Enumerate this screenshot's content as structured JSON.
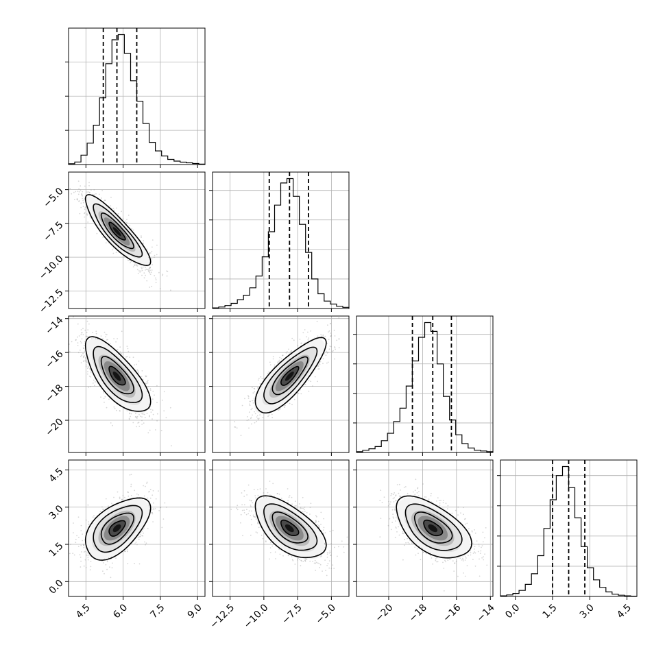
{
  "chart_data": {
    "type": "corner",
    "grid": true,
    "colors": {
      "marks": "#000000",
      "samples": "#8a8a8a",
      "grid": "#b0b0b0"
    },
    "parameters": [
      {
        "index": 0,
        "range": [
          3.8,
          9.3
        ],
        "ticks": [
          4.5,
          6.0,
          7.5,
          9.0
        ],
        "tick_labels": [
          "4.5",
          "6.0",
          "7.5",
          "9.0"
        ],
        "quantiles": [
          5.2,
          5.75,
          6.55
        ]
      },
      {
        "index": 1,
        "range": [
          -13.8,
          -3.7
        ],
        "ticks": [
          -12.5,
          -10.0,
          -7.5,
          -5.0
        ],
        "tick_labels": [
          "−12.5",
          "−10.0",
          "−7.5",
          "−5.0"
        ],
        "quantiles": [
          -9.6,
          -8.1,
          -6.7
        ]
      },
      {
        "index": 2,
        "range": [
          -21.9,
          -13.85
        ],
        "ticks": [
          -20,
          -18,
          -16,
          -14
        ],
        "tick_labels": [
          "−20",
          "−18",
          "−16",
          "−14"
        ],
        "quantiles": [
          -18.6,
          -17.4,
          -16.3
        ]
      },
      {
        "index": 3,
        "range": [
          -0.6,
          4.9
        ],
        "ticks": [
          0.0,
          1.5,
          3.0,
          4.5
        ],
        "tick_labels": [
          "0.0",
          "1.5",
          "3.0",
          "4.5"
        ],
        "quantiles": [
          1.5,
          2.15,
          2.8
        ]
      }
    ],
    "histograms": [
      {
        "param": 0,
        "bins": [
          3.8,
          9.3
        ],
        "counts": [
          0.5,
          1.5,
          5.5,
          12.5,
          23,
          39,
          59,
          73,
          76,
          65,
          49,
          37,
          24,
          13,
          8,
          5,
          3,
          2,
          1.4,
          1,
          0.6,
          0.3
        ]
      },
      {
        "param": 1,
        "bins": [
          -13.8,
          -3.7
        ],
        "counts": [
          0.4,
          1,
          2,
          3.5,
          6,
          9,
          14,
          22,
          35,
          52,
          70,
          85,
          88,
          76,
          57,
          38,
          20,
          10,
          5,
          3,
          1.5,
          0.8
        ]
      },
      {
        "param": 2,
        "bins": [
          -21.9,
          -13.85
        ],
        "counts": [
          0.5,
          1.5,
          2.5,
          4,
          8,
          13,
          21,
          30,
          45,
          62,
          78,
          88,
          82,
          60,
          38,
          22,
          12,
          6,
          3,
          1.5,
          1,
          0.5
        ]
      },
      {
        "param": 3,
        "bins": [
          -0.6,
          4.9
        ],
        "counts": [
          0.4,
          1,
          2,
          4,
          8,
          15,
          27,
          45,
          64,
          80,
          86,
          72,
          52,
          33,
          19,
          11,
          6,
          3,
          1.5,
          0.8,
          0.4,
          0.2
        ]
      }
    ],
    "pairs": [
      {
        "x": 0,
        "y": 1,
        "mean": [
          5.75,
          -8.1
        ],
        "sd": [
          0.65,
          1.3
        ],
        "corr": -0.87
      },
      {
        "x": 0,
        "y": 2,
        "mean": [
          5.75,
          -17.4
        ],
        "sd": [
          0.65,
          1.1
        ],
        "corr": -0.72
      },
      {
        "x": 1,
        "y": 2,
        "mean": [
          -8.1,
          -17.4
        ],
        "sd": [
          1.3,
          1.1
        ],
        "corr": 0.8
      },
      {
        "x": 0,
        "y": 3,
        "mean": [
          5.75,
          2.15
        ],
        "sd": [
          0.65,
          0.62
        ],
        "corr": 0.55
      },
      {
        "x": 1,
        "y": 3,
        "mean": [
          -8.1,
          2.15
        ],
        "sd": [
          1.3,
          0.62
        ],
        "corr": -0.6
      },
      {
        "x": 2,
        "y": 3,
        "mean": [
          -17.4,
          2.15
        ],
        "sd": [
          1.1,
          0.62
        ],
        "corr": -0.55
      }
    ],
    "contour_levels_sigma": [
      0.5,
      1.0,
      1.5,
      2.0
    ]
  }
}
